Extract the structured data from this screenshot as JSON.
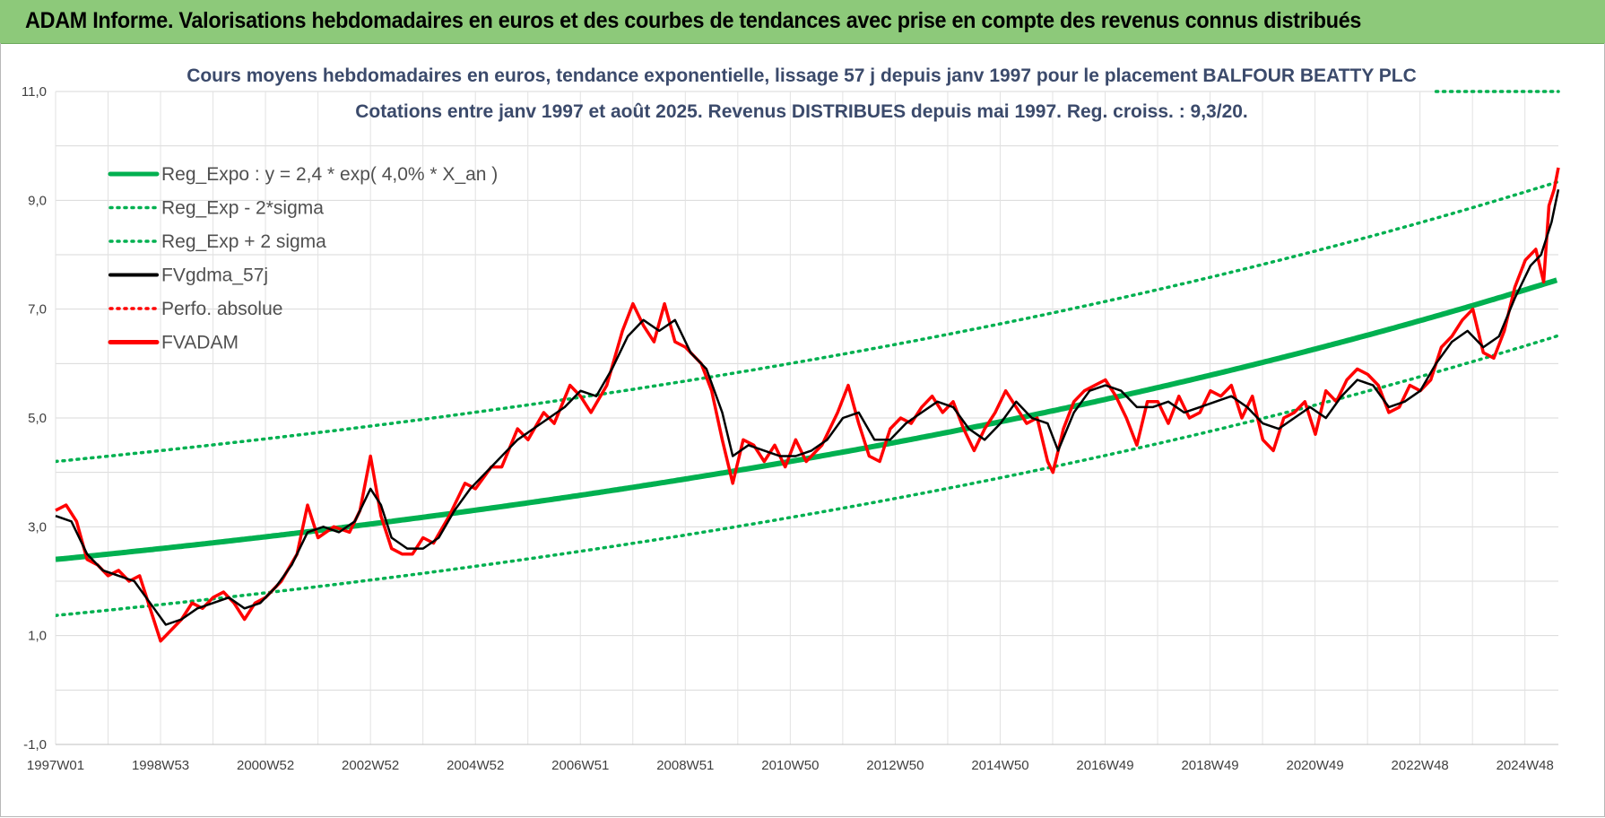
{
  "banner": {
    "title": "ADAM Informe. Valorisations hebdomadaires en euros et des courbes de tendances avec prise en compte des revenus connus distribués"
  },
  "colors": {
    "banner_bg": "#8dc97a",
    "trend": "#00b050",
    "smooth": "#000000",
    "price": "#ff0000",
    "title_text": "#3b4a6b"
  },
  "chart_data": {
    "type": "line",
    "title": "Cours moyens hebdomadaires en euros, tendance exponentielle, lissage 57 j depuis janv 1997 pour le placement BALFOUR BEATTY PLC",
    "subtitle": "Cotations entre janv 1997 et août 2025. Revenus DISTRIBUES depuis mai 1997. Reg. croiss. : 9,3/20.",
    "xlabel": "",
    "ylabel": "",
    "x_range": [
      1997.0,
      2025.63
    ],
    "ylim": [
      -1,
      11
    ],
    "y_ticks": [
      "-1,0",
      "1,0",
      "3,0",
      "5,0",
      "7,0",
      "9,0",
      "11,0"
    ],
    "x_tick_labels": [
      "1997W01",
      "1998W53",
      "2000W52",
      "2002W52",
      "2004W52",
      "2006W51",
      "2008W51",
      "2010W50",
      "2012W50",
      "2014W50",
      "2016W49",
      "2018W49",
      "2020W49",
      "2022W48",
      "2024W48"
    ],
    "grid": true,
    "legend_position": "top-left",
    "trend_formula": {
      "a": 2.4,
      "rate": 0.04,
      "x0": 1997.0,
      "band_low_offset": -1.03,
      "band_high_offset": 1.8
    },
    "series": [
      {
        "name": "Reg_Expo : y = 2,4 * exp( 4,0% *  X_an )",
        "style": "solid-thick",
        "color": "#00b050"
      },
      {
        "name": "Reg_Exp - 2*sigma",
        "style": "dotted",
        "color": "#00b050"
      },
      {
        "name": "Reg_Exp + 2 sigma",
        "style": "dotted",
        "color": "#00b050"
      },
      {
        "name": "FVgdma_57j",
        "style": "solid",
        "color": "#000000",
        "points": [
          [
            1997.0,
            3.2
          ],
          [
            1997.3,
            3.1
          ],
          [
            1997.6,
            2.5
          ],
          [
            1997.9,
            2.2
          ],
          [
            1998.2,
            2.1
          ],
          [
            1998.5,
            2.0
          ],
          [
            1998.8,
            1.6
          ],
          [
            1999.1,
            1.2
          ],
          [
            1999.4,
            1.3
          ],
          [
            1999.7,
            1.5
          ],
          [
            2000.0,
            1.6
          ],
          [
            2000.3,
            1.7
          ],
          [
            2000.6,
            1.5
          ],
          [
            2000.9,
            1.6
          ],
          [
            2001.2,
            1.9
          ],
          [
            2001.5,
            2.3
          ],
          [
            2001.8,
            2.9
          ],
          [
            2002.1,
            3.0
          ],
          [
            2002.4,
            2.9
          ],
          [
            2002.7,
            3.1
          ],
          [
            2003.0,
            3.7
          ],
          [
            2003.2,
            3.4
          ],
          [
            2003.4,
            2.8
          ],
          [
            2003.7,
            2.6
          ],
          [
            2004.0,
            2.6
          ],
          [
            2004.3,
            2.8
          ],
          [
            2004.6,
            3.3
          ],
          [
            2004.9,
            3.7
          ],
          [
            2005.2,
            4.0
          ],
          [
            2005.5,
            4.3
          ],
          [
            2005.8,
            4.6
          ],
          [
            2006.1,
            4.8
          ],
          [
            2006.4,
            5.0
          ],
          [
            2006.7,
            5.2
          ],
          [
            2007.0,
            5.5
          ],
          [
            2007.3,
            5.4
          ],
          [
            2007.6,
            5.9
          ],
          [
            2007.9,
            6.5
          ],
          [
            2008.2,
            6.8
          ],
          [
            2008.5,
            6.6
          ],
          [
            2008.8,
            6.8
          ],
          [
            2009.1,
            6.2
          ],
          [
            2009.4,
            5.9
          ],
          [
            2009.7,
            5.1
          ],
          [
            2009.9,
            4.3
          ],
          [
            2010.2,
            4.5
          ],
          [
            2010.5,
            4.4
          ],
          [
            2010.8,
            4.3
          ],
          [
            2011.1,
            4.3
          ],
          [
            2011.4,
            4.4
          ],
          [
            2011.7,
            4.6
          ],
          [
            2012.0,
            5.0
          ],
          [
            2012.3,
            5.1
          ],
          [
            2012.6,
            4.6
          ],
          [
            2012.9,
            4.6
          ],
          [
            2013.2,
            4.9
          ],
          [
            2013.5,
            5.1
          ],
          [
            2013.8,
            5.3
          ],
          [
            2014.1,
            5.2
          ],
          [
            2014.4,
            4.8
          ],
          [
            2014.7,
            4.6
          ],
          [
            2015.0,
            4.9
          ],
          [
            2015.3,
            5.3
          ],
          [
            2015.6,
            5.0
          ],
          [
            2015.9,
            4.9
          ],
          [
            2016.1,
            4.4
          ],
          [
            2016.4,
            5.1
          ],
          [
            2016.7,
            5.5
          ],
          [
            2017.0,
            5.6
          ],
          [
            2017.3,
            5.5
          ],
          [
            2017.6,
            5.2
          ],
          [
            2017.9,
            5.2
          ],
          [
            2018.2,
            5.3
          ],
          [
            2018.5,
            5.1
          ],
          [
            2018.8,
            5.2
          ],
          [
            2019.1,
            5.3
          ],
          [
            2019.4,
            5.4
          ],
          [
            2019.7,
            5.2
          ],
          [
            2020.0,
            4.9
          ],
          [
            2020.3,
            4.8
          ],
          [
            2020.6,
            5.0
          ],
          [
            2020.9,
            5.2
          ],
          [
            2021.2,
            5.0
          ],
          [
            2021.5,
            5.4
          ],
          [
            2021.8,
            5.7
          ],
          [
            2022.1,
            5.6
          ],
          [
            2022.4,
            5.2
          ],
          [
            2022.7,
            5.3
          ],
          [
            2023.0,
            5.5
          ],
          [
            2023.3,
            6.0
          ],
          [
            2023.6,
            6.4
          ],
          [
            2023.9,
            6.6
          ],
          [
            2024.2,
            6.3
          ],
          [
            2024.5,
            6.5
          ],
          [
            2024.8,
            7.2
          ],
          [
            2025.1,
            7.8
          ],
          [
            2025.3,
            8.0
          ],
          [
            2025.5,
            8.6
          ],
          [
            2025.63,
            9.2
          ]
        ]
      },
      {
        "name": "Perfo. absolue",
        "style": "dotted",
        "color": "#ff0000"
      },
      {
        "name": "FVADAM",
        "style": "solid-thick",
        "color": "#ff0000",
        "points": [
          [
            1997.0,
            3.3
          ],
          [
            1997.2,
            3.4
          ],
          [
            1997.4,
            3.1
          ],
          [
            1997.6,
            2.4
          ],
          [
            1997.8,
            2.3
          ],
          [
            1998.0,
            2.1
          ],
          [
            1998.2,
            2.2
          ],
          [
            1998.4,
            2.0
          ],
          [
            1998.6,
            2.1
          ],
          [
            1998.8,
            1.5
          ],
          [
            1999.0,
            0.9
          ],
          [
            1999.2,
            1.1
          ],
          [
            1999.4,
            1.3
          ],
          [
            1999.6,
            1.6
          ],
          [
            1999.8,
            1.5
          ],
          [
            2000.0,
            1.7
          ],
          [
            2000.2,
            1.8
          ],
          [
            2000.4,
            1.6
          ],
          [
            2000.6,
            1.3
          ],
          [
            2000.8,
            1.6
          ],
          [
            2001.0,
            1.7
          ],
          [
            2001.3,
            2.0
          ],
          [
            2001.6,
            2.5
          ],
          [
            2001.8,
            3.4
          ],
          [
            2002.0,
            2.8
          ],
          [
            2002.3,
            3.0
          ],
          [
            2002.6,
            2.9
          ],
          [
            2002.8,
            3.3
          ],
          [
            2003.0,
            4.3
          ],
          [
            2003.2,
            3.2
          ],
          [
            2003.4,
            2.6
          ],
          [
            2003.6,
            2.5
          ],
          [
            2003.8,
            2.5
          ],
          [
            2004.0,
            2.8
          ],
          [
            2004.2,
            2.7
          ],
          [
            2004.5,
            3.2
          ],
          [
            2004.8,
            3.8
          ],
          [
            2005.0,
            3.7
          ],
          [
            2005.3,
            4.1
          ],
          [
            2005.5,
            4.1
          ],
          [
            2005.8,
            4.8
          ],
          [
            2006.0,
            4.6
          ],
          [
            2006.3,
            5.1
          ],
          [
            2006.5,
            4.9
          ],
          [
            2006.8,
            5.6
          ],
          [
            2007.0,
            5.4
          ],
          [
            2007.2,
            5.1
          ],
          [
            2007.5,
            5.6
          ],
          [
            2007.8,
            6.6
          ],
          [
            2008.0,
            7.1
          ],
          [
            2008.2,
            6.7
          ],
          [
            2008.4,
            6.4
          ],
          [
            2008.6,
            7.1
          ],
          [
            2008.8,
            6.4
          ],
          [
            2009.0,
            6.3
          ],
          [
            2009.3,
            6.0
          ],
          [
            2009.5,
            5.5
          ],
          [
            2009.7,
            4.6
          ],
          [
            2009.9,
            3.8
          ],
          [
            2010.1,
            4.6
          ],
          [
            2010.3,
            4.5
          ],
          [
            2010.5,
            4.2
          ],
          [
            2010.7,
            4.5
          ],
          [
            2010.9,
            4.1
          ],
          [
            2011.1,
            4.6
          ],
          [
            2011.3,
            4.2
          ],
          [
            2011.6,
            4.5
          ],
          [
            2011.9,
            5.1
          ],
          [
            2012.1,
            5.6
          ],
          [
            2012.3,
            4.9
          ],
          [
            2012.5,
            4.3
          ],
          [
            2012.7,
            4.2
          ],
          [
            2012.9,
            4.8
          ],
          [
            2013.1,
            5.0
          ],
          [
            2013.3,
            4.9
          ],
          [
            2013.5,
            5.2
          ],
          [
            2013.7,
            5.4
          ],
          [
            2013.9,
            5.1
          ],
          [
            2014.1,
            5.3
          ],
          [
            2014.3,
            4.8
          ],
          [
            2014.5,
            4.4
          ],
          [
            2014.7,
            4.8
          ],
          [
            2014.9,
            5.1
          ],
          [
            2015.1,
            5.5
          ],
          [
            2015.3,
            5.2
          ],
          [
            2015.5,
            4.9
          ],
          [
            2015.7,
            5.0
          ],
          [
            2015.9,
            4.2
          ],
          [
            2016.0,
            4.0
          ],
          [
            2016.2,
            4.8
          ],
          [
            2016.4,
            5.3
          ],
          [
            2016.6,
            5.5
          ],
          [
            2016.8,
            5.6
          ],
          [
            2017.0,
            5.7
          ],
          [
            2017.2,
            5.4
          ],
          [
            2017.4,
            5.0
          ],
          [
            2017.6,
            4.5
          ],
          [
            2017.8,
            5.3
          ],
          [
            2018.0,
            5.3
          ],
          [
            2018.2,
            4.9
          ],
          [
            2018.4,
            5.4
          ],
          [
            2018.6,
            5.0
          ],
          [
            2018.8,
            5.1
          ],
          [
            2019.0,
            5.5
          ],
          [
            2019.2,
            5.4
          ],
          [
            2019.4,
            5.6
          ],
          [
            2019.6,
            5.0
          ],
          [
            2019.8,
            5.4
          ],
          [
            2020.0,
            4.6
          ],
          [
            2020.2,
            4.4
          ],
          [
            2020.4,
            5.0
          ],
          [
            2020.6,
            5.1
          ],
          [
            2020.8,
            5.3
          ],
          [
            2021.0,
            4.7
          ],
          [
            2021.2,
            5.5
          ],
          [
            2021.4,
            5.3
          ],
          [
            2021.6,
            5.7
          ],
          [
            2021.8,
            5.9
          ],
          [
            2022.0,
            5.8
          ],
          [
            2022.2,
            5.6
          ],
          [
            2022.4,
            5.1
          ],
          [
            2022.6,
            5.2
          ],
          [
            2022.8,
            5.6
          ],
          [
            2023.0,
            5.5
          ],
          [
            2023.2,
            5.7
          ],
          [
            2023.4,
            6.3
          ],
          [
            2023.6,
            6.5
          ],
          [
            2023.8,
            6.8
          ],
          [
            2024.0,
            7.0
          ],
          [
            2024.2,
            6.2
          ],
          [
            2024.4,
            6.1
          ],
          [
            2024.6,
            6.6
          ],
          [
            2024.8,
            7.4
          ],
          [
            2025.0,
            7.9
          ],
          [
            2025.2,
            8.1
          ],
          [
            2025.35,
            7.5
          ],
          [
            2025.45,
            8.9
          ],
          [
            2025.55,
            9.2
          ],
          [
            2025.63,
            9.6
          ]
        ]
      }
    ]
  }
}
